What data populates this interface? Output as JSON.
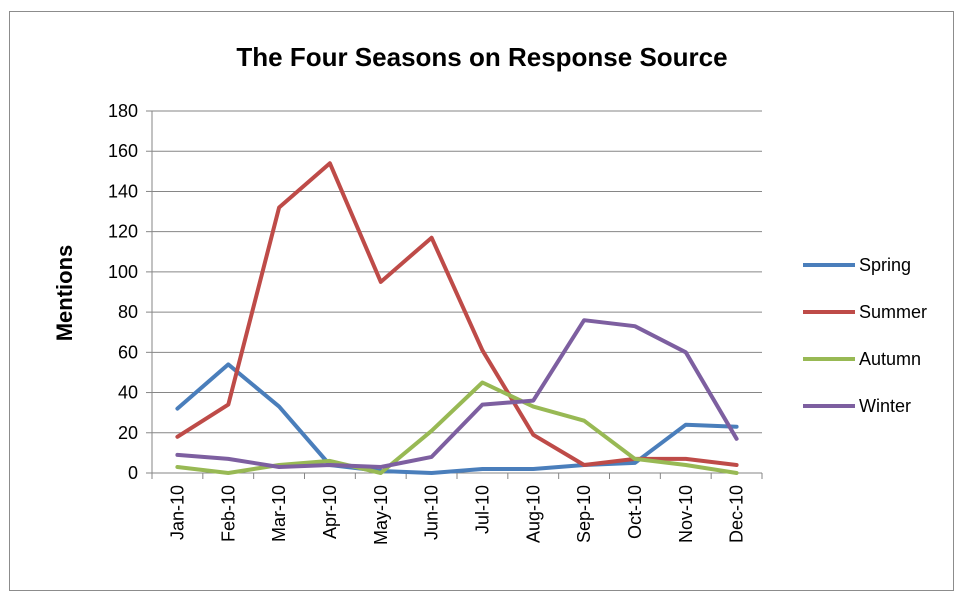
{
  "chart_data": {
    "type": "line",
    "title": "The Four Seasons on Response Source",
    "xlabel": "",
    "ylabel": "Mentions",
    "ylim": [
      0,
      180
    ],
    "yticks": [
      0,
      20,
      40,
      60,
      80,
      100,
      120,
      140,
      160,
      180
    ],
    "grid": true,
    "legend_position": "right",
    "categories": [
      "Jan-10",
      "Feb-10",
      "Mar-10",
      "Apr-10",
      "May-10",
      "Jun-10",
      "Jul-10",
      "Aug-10",
      "Sep-10",
      "Oct-10",
      "Nov-10",
      "Dec-10"
    ],
    "series": [
      {
        "name": "Spring",
        "color": "#4a7ebb",
        "values": [
          32,
          54,
          33,
          4,
          1,
          0,
          2,
          2,
          4,
          5,
          24,
          23
        ]
      },
      {
        "name": "Summer",
        "color": "#be4b48",
        "values": [
          18,
          34,
          132,
          154,
          95,
          117,
          61,
          19,
          4,
          7,
          7,
          4
        ]
      },
      {
        "name": "Autumn",
        "color": "#98b954",
        "values": [
          3,
          0,
          4,
          6,
          0,
          21,
          45,
          33,
          26,
          7,
          4,
          0
        ]
      },
      {
        "name": "Winter",
        "color": "#7d5fa0",
        "values": [
          9,
          7,
          3,
          4,
          3,
          8,
          34,
          36,
          76,
          73,
          60,
          17
        ]
      }
    ]
  }
}
